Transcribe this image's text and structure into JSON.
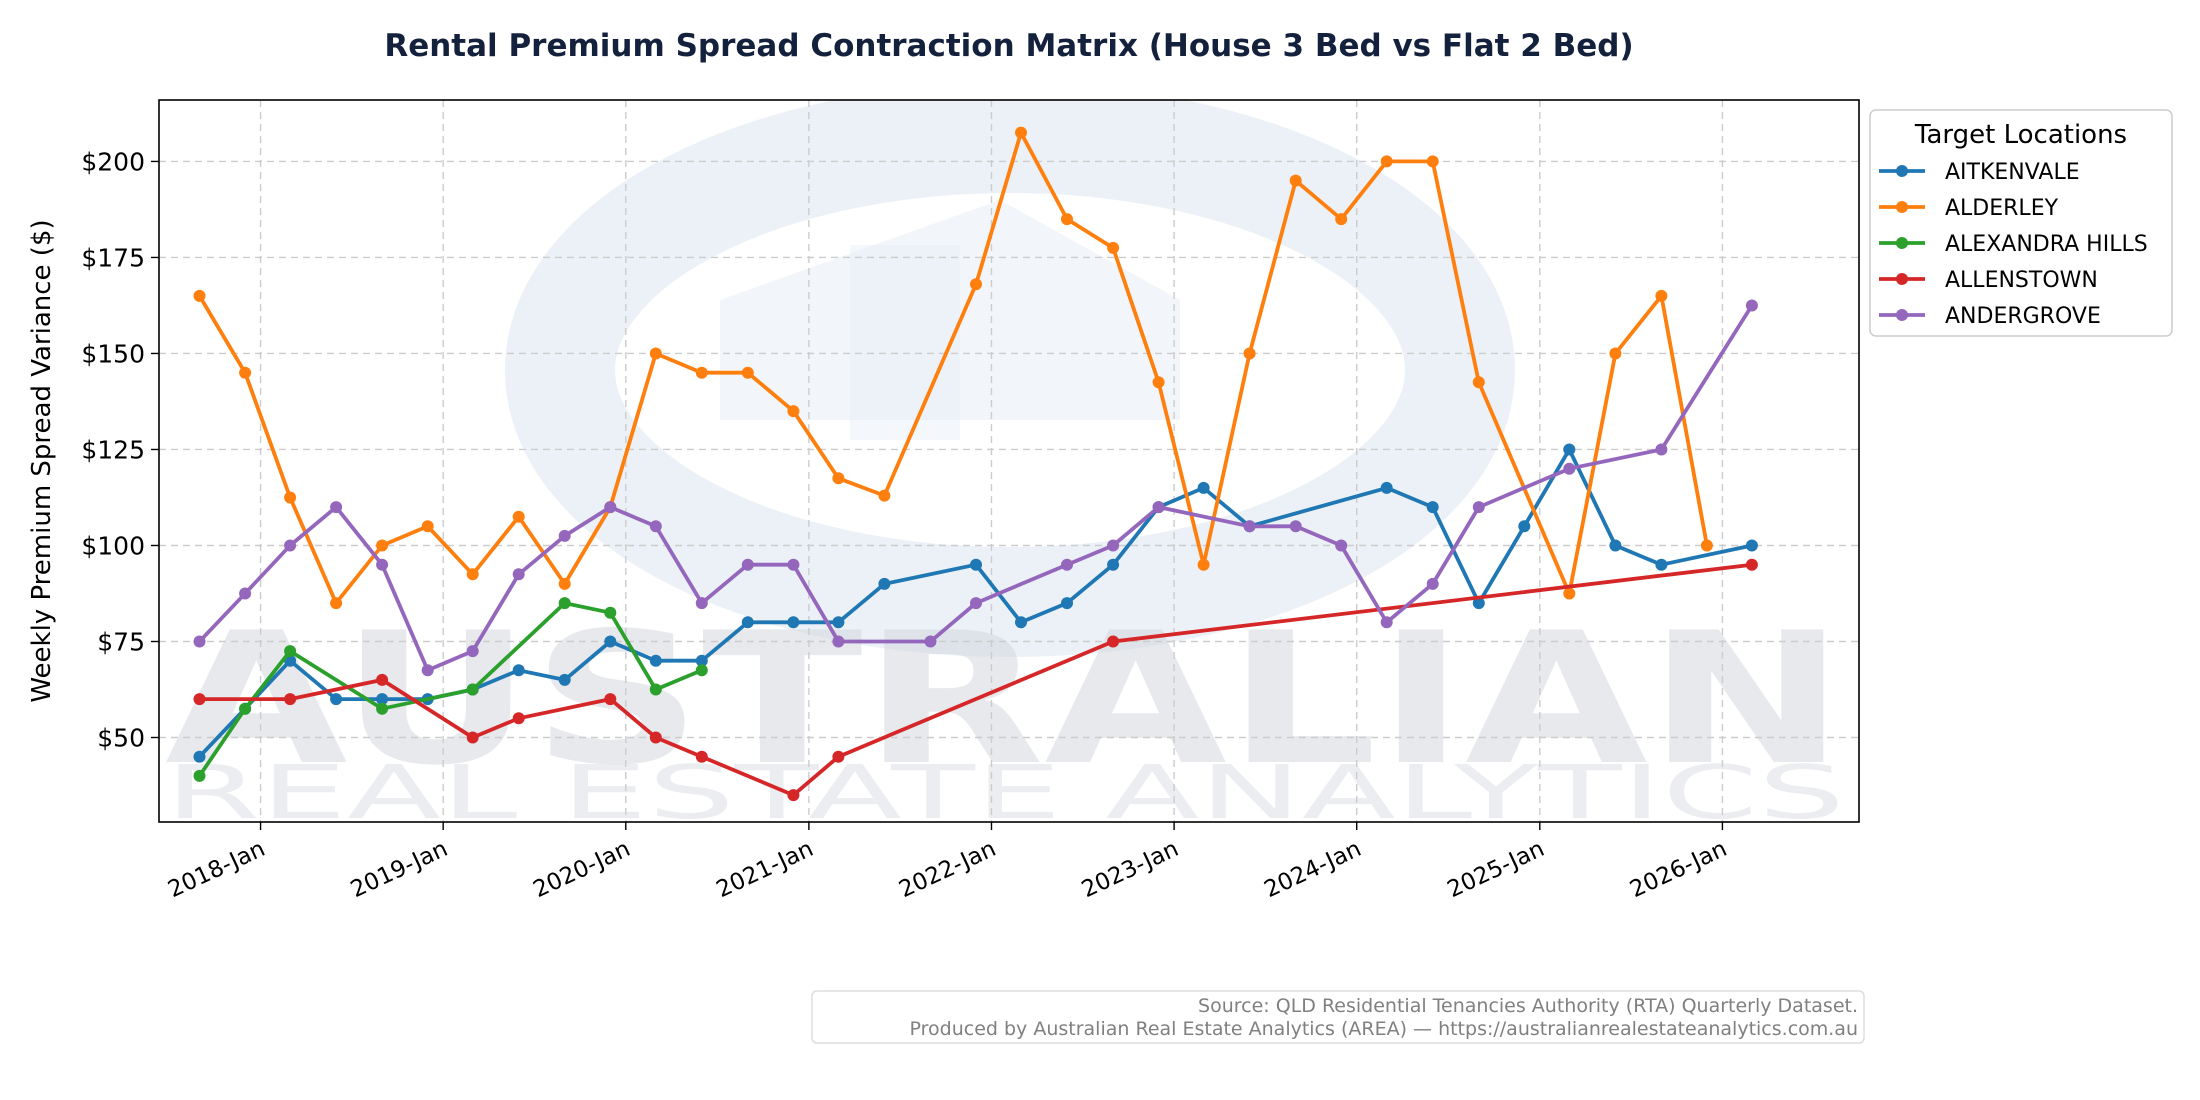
{
  "chart_data": {
    "type": "line",
    "title": "Rental Premium Spread Contraction Matrix (House 3 Bed vs Flat 2 Bed)",
    "xlabel": "",
    "ylabel": "Weekly Premium Spread Variance ($)",
    "ylim": [
      28,
      216
    ],
    "xlim": [
      "2017-06-12",
      "2026-10-01"
    ],
    "x_ticks": [
      {
        "date": "2018-01-01",
        "label": "2018-Jan"
      },
      {
        "date": "2019-01-01",
        "label": "2019-Jan"
      },
      {
        "date": "2020-01-01",
        "label": "2020-Jan"
      },
      {
        "date": "2021-01-01",
        "label": "2021-Jan"
      },
      {
        "date": "2022-01-01",
        "label": "2022-Jan"
      },
      {
        "date": "2023-01-01",
        "label": "2023-Jan"
      },
      {
        "date": "2024-01-01",
        "label": "2024-Jan"
      },
      {
        "date": "2025-01-01",
        "label": "2025-Jan"
      },
      {
        "date": "2026-01-01",
        "label": "2026-Jan"
      }
    ],
    "y_ticks": [
      {
        "value": 50,
        "label": "$50"
      },
      {
        "value": 75,
        "label": "$75"
      },
      {
        "value": 100,
        "label": "$100"
      },
      {
        "value": 125,
        "label": "$125"
      },
      {
        "value": 150,
        "label": "$150"
      },
      {
        "value": 175,
        "label": "$175"
      },
      {
        "value": 200,
        "label": "$200"
      }
    ],
    "grid": true,
    "legend": {
      "title": "Target Locations",
      "placement": "outside-right"
    },
    "series": [
      {
        "name": "AITKENVALE",
        "color": "#1f77b4",
        "points": [
          [
            "2017-09-01",
            45
          ],
          [
            "2017-12-01",
            57.5
          ],
          [
            "2018-03-01",
            70
          ],
          [
            "2018-06-01",
            60
          ],
          [
            "2018-09-01",
            60
          ],
          [
            "2018-12-01",
            60
          ],
          [
            "2019-03-01",
            62.5
          ],
          [
            "2019-06-01",
            67.5
          ],
          [
            "2019-09-01",
            65
          ],
          [
            "2019-12-01",
            75
          ],
          [
            "2020-03-01",
            70
          ],
          [
            "2020-06-01",
            70
          ],
          [
            "2020-09-01",
            80
          ],
          [
            "2020-12-01",
            80
          ],
          [
            "2021-03-01",
            80
          ],
          [
            "2021-06-01",
            90
          ],
          [
            "2021-12-01",
            95
          ],
          [
            "2022-03-01",
            80
          ],
          [
            "2022-06-01",
            85
          ],
          [
            "2022-09-01",
            95
          ],
          [
            "2022-12-01",
            110
          ],
          [
            "2023-03-01",
            115
          ],
          [
            "2023-06-01",
            105
          ],
          [
            "2024-03-01",
            115
          ],
          [
            "2024-06-01",
            110
          ],
          [
            "2024-09-01",
            85
          ],
          [
            "2024-12-01",
            105
          ],
          [
            "2025-03-01",
            125
          ],
          [
            "2025-06-01",
            100
          ],
          [
            "2025-09-01",
            95
          ],
          [
            "2026-03-01",
            100
          ]
        ]
      },
      {
        "name": "ALDERLEY",
        "color": "#ff7f0e",
        "points": [
          [
            "2017-09-01",
            165
          ],
          [
            "2017-12-01",
            145
          ],
          [
            "2018-03-01",
            112.5
          ],
          [
            "2018-06-01",
            85
          ],
          [
            "2018-09-01",
            100
          ],
          [
            "2018-12-01",
            105
          ],
          [
            "2019-03-01",
            92.5
          ],
          [
            "2019-06-01",
            107.5
          ],
          [
            "2019-09-01",
            90
          ],
          [
            "2019-12-01",
            110
          ],
          [
            "2020-03-01",
            150
          ],
          [
            "2020-06-01",
            145
          ],
          [
            "2020-09-01",
            145
          ],
          [
            "2020-12-01",
            135
          ],
          [
            "2021-03-01",
            117.5
          ],
          [
            "2021-06-01",
            113
          ],
          [
            "2021-12-01",
            168
          ],
          [
            "2022-03-01",
            207.5
          ],
          [
            "2022-06-01",
            185
          ],
          [
            "2022-09-01",
            177.5
          ],
          [
            "2022-12-01",
            142.5
          ],
          [
            "2023-03-01",
            95
          ],
          [
            "2023-06-01",
            150
          ],
          [
            "2023-09-01",
            195
          ],
          [
            "2023-12-01",
            185
          ],
          [
            "2024-03-01",
            200
          ],
          [
            "2024-06-01",
            200
          ],
          [
            "2024-09-01",
            142.5
          ],
          [
            "2025-03-01",
            87.5
          ],
          [
            "2025-06-01",
            150
          ],
          [
            "2025-09-01",
            165
          ],
          [
            "2025-12-01",
            100
          ]
        ]
      },
      {
        "name": "ALEXANDRA HILLS",
        "color": "#2ca02c",
        "points": [
          [
            "2017-09-01",
            40
          ],
          [
            "2017-12-01",
            57.5
          ],
          [
            "2018-03-01",
            72.5
          ],
          [
            "2018-09-01",
            57.5
          ],
          [
            "2019-03-01",
            62.5
          ],
          [
            "2019-09-01",
            85
          ],
          [
            "2019-12-01",
            82.5
          ],
          [
            "2020-03-01",
            62.5
          ],
          [
            "2020-06-01",
            67.5
          ]
        ]
      },
      {
        "name": "ALLENSTOWN",
        "color": "#d62728",
        "points": [
          [
            "2017-09-01",
            60
          ],
          [
            "2018-03-01",
            60
          ],
          [
            "2018-09-01",
            65
          ],
          [
            "2019-03-01",
            50
          ],
          [
            "2019-06-01",
            55
          ],
          [
            "2019-12-01",
            60
          ],
          [
            "2020-03-01",
            50
          ],
          [
            "2020-06-01",
            45
          ],
          [
            "2020-12-01",
            35
          ],
          [
            "2021-03-01",
            45
          ],
          [
            "2022-09-01",
            75
          ],
          [
            "2026-03-01",
            95
          ]
        ]
      },
      {
        "name": "ANDERGROVE",
        "color": "#9467bd",
        "points": [
          [
            "2017-09-01",
            75
          ],
          [
            "2017-12-01",
            87.5
          ],
          [
            "2018-03-01",
            100
          ],
          [
            "2018-06-01",
            110
          ],
          [
            "2018-09-01",
            95
          ],
          [
            "2018-12-01",
            67.5
          ],
          [
            "2019-03-01",
            72.5
          ],
          [
            "2019-06-01",
            92.5
          ],
          [
            "2019-09-01",
            102.5
          ],
          [
            "2019-12-01",
            110
          ],
          [
            "2020-03-01",
            105
          ],
          [
            "2020-06-01",
            85
          ],
          [
            "2020-09-01",
            95
          ],
          [
            "2020-12-01",
            95
          ],
          [
            "2021-03-01",
            75
          ],
          [
            "2021-09-01",
            75
          ],
          [
            "2021-12-01",
            85
          ],
          [
            "2022-06-01",
            95
          ],
          [
            "2022-09-01",
            100
          ],
          [
            "2022-12-01",
            110
          ],
          [
            "2023-06-01",
            105
          ],
          [
            "2023-09-01",
            105
          ],
          [
            "2023-12-01",
            100
          ],
          [
            "2024-03-01",
            80
          ],
          [
            "2024-06-01",
            90
          ],
          [
            "2024-09-01",
            110
          ],
          [
            "2025-03-01",
            120
          ],
          [
            "2025-09-01",
            125
          ],
          [
            "2026-03-01",
            162.5
          ]
        ]
      }
    ]
  },
  "watermark": {
    "line1": "AUSTRALIAN",
    "line2": "REAL ESTATE ANALYTICS"
  },
  "source_note": {
    "line1": "Source: QLD Residential Tenancies Authority (RTA) Quarterly Dataset.",
    "line2": "Produced by Australian Real Estate Analytics (AREA) — https://australianrealestateanalytics.com.au"
  }
}
